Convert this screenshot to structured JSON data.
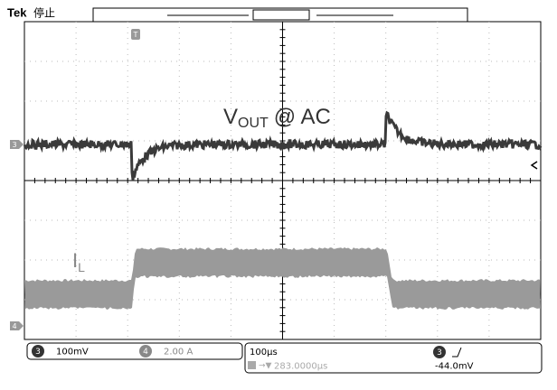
{
  "header": {
    "brand": "Tek",
    "status": "停止"
  },
  "traces": {
    "vout": {
      "label": "V",
      "subscript": "OUT",
      "suffix": "@ AC"
    },
    "il": {
      "label": "I",
      "subscript": "L"
    }
  },
  "markers": {
    "trigger": "T",
    "ch3": "3",
    "ch4": "4"
  },
  "status_bar": {
    "ch3": {
      "number": "3",
      "scale": "100mV"
    },
    "ch4": {
      "number": "4",
      "scale": "2.00 A"
    },
    "timebase": "100µs",
    "position": "283.0000µs",
    "trigger_channel": "3",
    "trigger_level": "-44.0mV"
  }
}
